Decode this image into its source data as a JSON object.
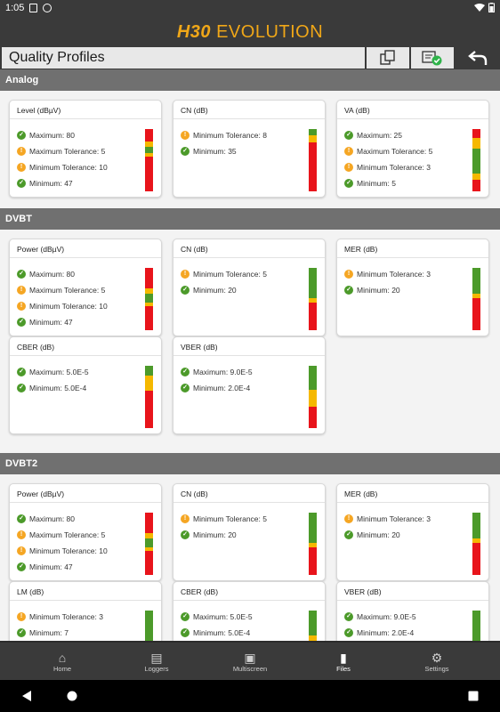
{
  "status": {
    "time": "1:05"
  },
  "header": {
    "title": "Quality Profiles",
    "logo_h30": "H30",
    "logo_word": "EVOLUTION"
  },
  "colors": {
    "ok": "#4c9a2a",
    "warn": "#f5a623",
    "bad": "#e8141b",
    "green": "#4c9a2a",
    "yellow": "#f5b800",
    "red": "#e8141b"
  },
  "sections": [
    {
      "title": "Analog",
      "cards": [
        {
          "title": "Level (dBµV)",
          "rows": [
            {
              "icon": "ok",
              "text": "Maximum: 80"
            },
            {
              "icon": "warn",
              "text": "Maximum Tolerance: 5"
            },
            {
              "icon": "warn",
              "text": "Minimum Tolerance: 10"
            },
            {
              "icon": "ok",
              "text": "Minimum: 47"
            }
          ],
          "bar": [
            [
              "red",
              0.2
            ],
            [
              "yellow",
              0.09
            ],
            [
              "green",
              0.1
            ],
            [
              "yellow",
              0.06
            ],
            [
              "red",
              0.55
            ]
          ]
        },
        {
          "title": "CN (dB)",
          "rows": [
            {
              "icon": "warn",
              "text": "Minimum Tolerance: 8"
            },
            {
              "icon": "ok",
              "text": "Minimum: 35"
            }
          ],
          "bar": [
            [
              "green",
              0.1
            ],
            [
              "yellow",
              0.12
            ],
            [
              "red",
              0.78
            ]
          ]
        },
        {
          "title": "VA (dB)",
          "rows": [
            {
              "icon": "ok",
              "text": "Maximum: 25"
            },
            {
              "icon": "warn",
              "text": "Maximum Tolerance: 5"
            },
            {
              "icon": "warn",
              "text": "Minimum Tolerance: 3"
            },
            {
              "icon": "ok",
              "text": "Minimum: 5"
            }
          ],
          "bar": [
            [
              "red",
              0.14
            ],
            [
              "yellow",
              0.17
            ],
            [
              "green",
              0.4
            ],
            [
              "yellow",
              0.1
            ],
            [
              "red",
              0.19
            ]
          ]
        }
      ]
    },
    {
      "title": "DVBT",
      "cards": [
        {
          "title": "Power (dBµV)",
          "rows": [
            {
              "icon": "ok",
              "text": "Maximum: 80"
            },
            {
              "icon": "warn",
              "text": "Maximum Tolerance: 5"
            },
            {
              "icon": "warn",
              "text": "Minimum Tolerance: 10"
            },
            {
              "icon": "ok",
              "text": "Minimum: 47"
            }
          ],
          "bar": [
            [
              "red",
              0.33
            ],
            [
              "yellow",
              0.08
            ],
            [
              "green",
              0.15
            ],
            [
              "yellow",
              0.06
            ],
            [
              "red",
              0.38
            ]
          ]
        },
        {
          "title": "CN (dB)",
          "rows": [
            {
              "icon": "warn",
              "text": "Minimum Tolerance: 5"
            },
            {
              "icon": "ok",
              "text": "Minimum: 20"
            }
          ],
          "bar": [
            [
              "green",
              0.48
            ],
            [
              "yellow",
              0.08
            ],
            [
              "red",
              0.44
            ]
          ]
        },
        {
          "title": "MER (dB)",
          "rows": [
            {
              "icon": "warn",
              "text": "Minimum Tolerance: 3"
            },
            {
              "icon": "ok",
              "text": "Minimum: 20"
            }
          ],
          "bar": [
            [
              "green",
              0.42
            ],
            [
              "yellow",
              0.06
            ],
            [
              "red",
              0.52
            ]
          ]
        },
        {
          "title": "CBER (dB)",
          "rows": [
            {
              "icon": "ok",
              "text": "Maximum: 5.0E-5"
            },
            {
              "icon": "ok",
              "text": "Minimum: 5.0E-4"
            }
          ],
          "bar": [
            [
              "green",
              0.16
            ],
            [
              "yellow",
              0.24
            ],
            [
              "red",
              0.6
            ]
          ]
        },
        {
          "title": "VBER (dB)",
          "rows": [
            {
              "icon": "ok",
              "text": "Maximum: 9.0E-5"
            },
            {
              "icon": "ok",
              "text": "Minimum: 2.0E-4"
            }
          ],
          "bar": [
            [
              "green",
              0.38
            ],
            [
              "yellow",
              0.28
            ],
            [
              "red",
              0.34
            ]
          ]
        }
      ]
    },
    {
      "title": "DVBT2",
      "cards": [
        {
          "title": "Power (dBµV)",
          "rows": [
            {
              "icon": "ok",
              "text": "Maximum: 80"
            },
            {
              "icon": "warn",
              "text": "Maximum Tolerance: 5"
            },
            {
              "icon": "warn",
              "text": "Minimum Tolerance: 10"
            },
            {
              "icon": "ok",
              "text": "Minimum: 47"
            }
          ],
          "bar": [
            [
              "red",
              0.33
            ],
            [
              "yellow",
              0.08
            ],
            [
              "green",
              0.15
            ],
            [
              "yellow",
              0.06
            ],
            [
              "red",
              0.38
            ]
          ]
        },
        {
          "title": "CN (dB)",
          "rows": [
            {
              "icon": "warn",
              "text": "Minimum Tolerance: 5"
            },
            {
              "icon": "ok",
              "text": "Minimum: 20"
            }
          ],
          "bar": [
            [
              "green",
              0.48
            ],
            [
              "yellow",
              0.08
            ],
            [
              "red",
              0.44
            ]
          ]
        },
        {
          "title": "MER (dB)",
          "rows": [
            {
              "icon": "warn",
              "text": "Minimum Tolerance: 3"
            },
            {
              "icon": "ok",
              "text": "Minimum: 20"
            }
          ],
          "bar": [
            [
              "green",
              0.42
            ],
            [
              "yellow",
              0.06
            ],
            [
              "red",
              0.52
            ]
          ]
        },
        {
          "title": "LM (dB)",
          "rows": [
            {
              "icon": "warn",
              "text": "Minimum Tolerance: 3"
            },
            {
              "icon": "ok",
              "text": "Minimum: 7"
            }
          ],
          "bar": [
            [
              "green",
              1.0
            ]
          ]
        },
        {
          "title": "CBER (dB)",
          "rows": [
            {
              "icon": "ok",
              "text": "Maximum: 5.0E-5"
            },
            {
              "icon": "ok",
              "text": "Minimum: 5.0E-4"
            }
          ],
          "bar": [
            [
              "green",
              0.4
            ],
            [
              "yellow",
              0.6
            ]
          ]
        },
        {
          "title": "VBER (dB)",
          "rows": [
            {
              "icon": "ok",
              "text": "Maximum: 9.0E-5"
            },
            {
              "icon": "ok",
              "text": "Minimum: 2.0E-4"
            }
          ],
          "bar": [
            [
              "green",
              1.0
            ]
          ]
        }
      ]
    }
  ],
  "nav": [
    {
      "label": "Home",
      "icon": "home-icon"
    },
    {
      "label": "Loggers",
      "icon": "loggers-icon"
    },
    {
      "label": "Multiscreen",
      "icon": "multiscreen-icon"
    },
    {
      "label": "Files",
      "icon": "files-icon",
      "active": true
    },
    {
      "label": "Settings",
      "icon": "settings-icon"
    }
  ]
}
